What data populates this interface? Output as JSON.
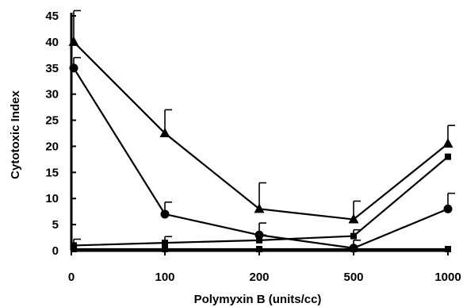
{
  "chart_data": {
    "type": "line",
    "xlabel": "Polymyxin B  (units/cc)",
    "ylabel": "Cytotoxic Index",
    "categories": [
      "0",
      "100",
      "200",
      "500",
      "1000"
    ],
    "yticks": [
      "0",
      "5",
      "10",
      "15",
      "20",
      "25",
      "30",
      "35",
      "40",
      "45"
    ],
    "ylim": [
      0,
      45
    ],
    "grid": false,
    "legend": "none",
    "series": [
      {
        "marker": "triangle",
        "values": [
          40,
          22.5,
          8,
          6,
          20.5
        ],
        "error": [
          6,
          4.5,
          5,
          3.5,
          3.5
        ]
      },
      {
        "marker": "circle",
        "values": [
          35,
          7,
          3,
          0.5,
          8
        ],
        "error": [
          2,
          2.3,
          2.3,
          1.5,
          3
        ]
      },
      {
        "marker": "square",
        "values": [
          1,
          1.5,
          2,
          2.8,
          18
        ],
        "error": [
          1.2,
          1.2,
          1.0,
          1.2,
          0
        ]
      },
      {
        "marker": "square",
        "values": [
          0.3,
          0.3,
          0.3,
          0.3,
          0.3
        ],
        "error": [
          0,
          0,
          0,
          0,
          0
        ]
      }
    ]
  }
}
